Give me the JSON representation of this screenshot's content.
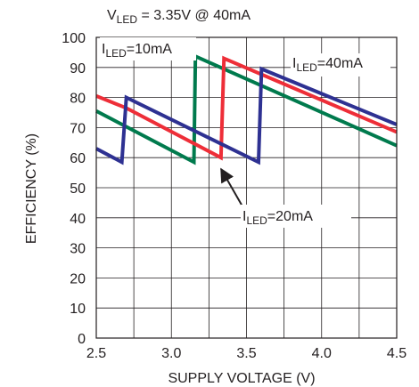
{
  "chart_data": {
    "type": "line",
    "title": {
      "prefix": "V",
      "sub": "LED",
      "suffix": " = 3.35V @ 40mA"
    },
    "xlabel": "SUPPLY VOLTAGE (V)",
    "ylabel": "EFFICIENCY (%)",
    "xlim": [
      2.5,
      4.5
    ],
    "ylim": [
      0,
      100
    ],
    "xticks": [
      "2.5",
      "3.0",
      "3.5",
      "4.0",
      "4.5"
    ],
    "yticks": [
      "0",
      "10",
      "20",
      "30",
      "40",
      "50",
      "60",
      "70",
      "80",
      "90",
      "100"
    ],
    "grid": true,
    "series": [
      {
        "name": "ILED=10mA",
        "label_parts": {
          "prefix": "I",
          "sub": "LED",
          "suffix": "=10mA"
        },
        "color": "#007a4d",
        "points": [
          [
            2.5,
            75.5
          ],
          [
            3.15,
            58.5
          ],
          [
            3.16,
            93.7
          ],
          [
            4.5,
            64
          ]
        ]
      },
      {
        "name": "ILED=20mA",
        "label_parts": {
          "prefix": "I",
          "sub": "LED",
          "suffix": "=20mA"
        },
        "color": "#ee2e38",
        "points": [
          [
            2.5,
            80.5
          ],
          [
            2.7,
            76.5
          ],
          [
            3.33,
            60
          ],
          [
            3.35,
            93
          ],
          [
            4.5,
            68.5
          ]
        ]
      },
      {
        "name": "ILED=40mA",
        "label_parts": {
          "prefix": "I",
          "sub": "LED",
          "suffix": "=40mA"
        },
        "color": "#2e3192",
        "points": [
          [
            2.5,
            63
          ],
          [
            2.67,
            58.5
          ],
          [
            2.7,
            80
          ],
          [
            3.58,
            58.5
          ],
          [
            3.6,
            89.5
          ],
          [
            4.5,
            71
          ]
        ]
      }
    ],
    "annotation_arrow": {
      "from": [
        3.2,
        58
      ],
      "to": [
        3.17,
        65
      ],
      "note": "arrow points from 20mA label to red curve"
    }
  }
}
